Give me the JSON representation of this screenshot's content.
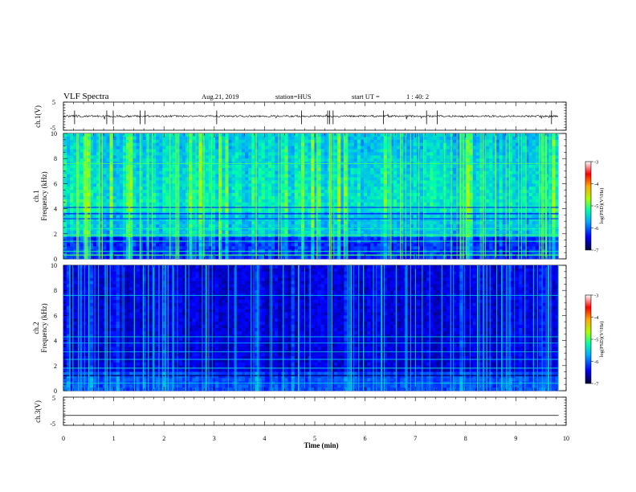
{
  "header": {
    "title": "VLF Spectra",
    "date": "Aug.21, 2019",
    "station": "station=HUS",
    "start_label": "start  UT =",
    "start_time": "1 : 40: 2"
  },
  "chart_data": [
    {
      "type": "line",
      "panel": "ch1-waveform",
      "ylabel": "ch.1(V)",
      "y_ticks": [
        "5",
        "-5"
      ],
      "ylim": [
        -5,
        5
      ],
      "xlim": [
        0,
        10
      ],
      "baseline": 0.0
    },
    {
      "type": "heatmap",
      "panel": "ch1-spectrogram",
      "ylabel": "ch.1\nFrequency (kHz)",
      "y_ticks": [
        "0",
        "2",
        "4",
        "6",
        "8",
        "10"
      ],
      "ylim": [
        0,
        10
      ],
      "xlim": [
        0,
        9.85
      ],
      "colorbar": {
        "label": "log(PSD)(V²/Hz)",
        "ticks": [
          "-3",
          "-4",
          "-5",
          "-6",
          "-7"
        ],
        "range": [
          -7,
          -3
        ],
        "colors": [
          "#000033",
          "#0000ff",
          "#00aaff",
          "#00ffaa",
          "#aaff00",
          "#ffaa00",
          "#ff0000",
          "#ffffff"
        ]
      }
    },
    {
      "type": "heatmap",
      "panel": "ch2-spectrogram",
      "ylabel": "ch.2\nFrequency (kHz)",
      "y_ticks": [
        "0",
        "2",
        "4",
        "6",
        "8",
        "10"
      ],
      "ylim": [
        0,
        10
      ],
      "xlim": [
        0,
        9.85
      ],
      "colorbar": {
        "label": "log(PSD)(V²/Hz)",
        "ticks": [
          "-3",
          "-4",
          "-5",
          "-6",
          "-7"
        ],
        "range": [
          -7,
          -3
        ],
        "colors": [
          "#000033",
          "#0000ff",
          "#00aaff",
          "#00ffaa",
          "#aaff00",
          "#ffaa00",
          "#ff0000",
          "#ffffff"
        ]
      }
    },
    {
      "type": "line",
      "panel": "ch3-waveform",
      "ylabel": "ch.3(V)",
      "y_ticks": [
        "5",
        "-5"
      ],
      "ylim": [
        -5,
        5
      ],
      "xlim": [
        0,
        10
      ],
      "baseline": -1.5,
      "x_ticks": [
        "0",
        "1",
        "2",
        "3",
        "4",
        "5",
        "6",
        "7",
        "8",
        "9",
        "10"
      ],
      "xlabel": "Time (min)"
    }
  ]
}
